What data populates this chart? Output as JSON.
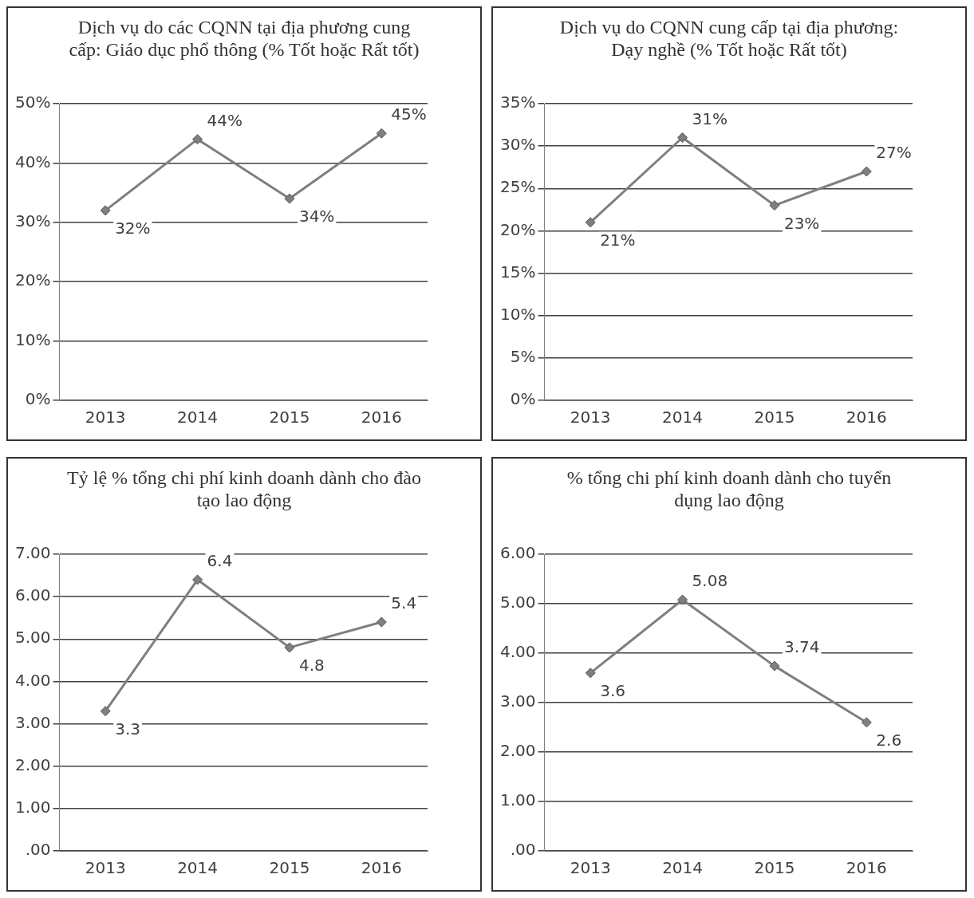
{
  "chart_data": [
    {
      "type": "line",
      "title": "Dịch vụ do các CQNN tại địa phương cung cấp: Giáo dục phổ thông (% Tốt hoặc Rất tốt)",
      "categories": [
        "2013",
        "2014",
        "2015",
        "2016"
      ],
      "values": [
        32,
        44,
        34,
        45
      ],
      "value_labels": [
        "32%",
        "44%",
        "34%",
        "45%"
      ],
      "color": "#7f7f7f",
      "marker": "diamond",
      "grid": "y",
      "ylim": [
        0,
        50
      ],
      "yticks": [
        {
          "value": 0,
          "label": "0%"
        },
        {
          "value": 10,
          "label": "10%"
        },
        {
          "value": 20,
          "label": "20%"
        },
        {
          "value": 30,
          "label": "30%"
        },
        {
          "value": 40,
          "label": "40%"
        },
        {
          "value": 50,
          "label": "50%"
        }
      ]
    },
    {
      "type": "line",
      "title": "Dịch vụ do CQNN cung cấp tại địa phương: Dạy nghề (% Tốt hoặc Rất tốt)",
      "categories": [
        "2013",
        "2014",
        "2015",
        "2016"
      ],
      "values": [
        21,
        31,
        23,
        27
      ],
      "value_labels": [
        "21%",
        "31%",
        "23%",
        "27%"
      ],
      "color": "#7f7f7f",
      "marker": "diamond",
      "grid": "y",
      "ylim": [
        0,
        35
      ],
      "yticks": [
        {
          "value": 0,
          "label": "0%"
        },
        {
          "value": 5,
          "label": "5%"
        },
        {
          "value": 10,
          "label": "10%"
        },
        {
          "value": 15,
          "label": "15%"
        },
        {
          "value": 20,
          "label": "20%"
        },
        {
          "value": 25,
          "label": "25%"
        },
        {
          "value": 30,
          "label": "30%"
        },
        {
          "value": 35,
          "label": "35%"
        }
      ]
    },
    {
      "type": "line",
      "title": "Tỷ lệ % tổng chi phí kinh doanh dành cho đào tạo lao động",
      "categories": [
        "2013",
        "2014",
        "2015",
        "2016"
      ],
      "values": [
        3.3,
        6.4,
        4.8,
        5.4
      ],
      "data_labels": true,
      "color": "#7f7f7f",
      "marker": "diamond",
      "grid": "y",
      "ylim": [
        0,
        7
      ],
      "yticks": [
        {
          "value": 0,
          "label": ".00"
        },
        {
          "value": 1,
          "label": "1.00"
        },
        {
          "value": 2,
          "label": "2.00"
        },
        {
          "value": 3,
          "label": "3.00"
        },
        {
          "value": 4,
          "label": "4.00"
        },
        {
          "value": 5,
          "label": "5.00"
        },
        {
          "value": 6,
          "label": "6.00"
        },
        {
          "value": 7,
          "label": "7.00"
        }
      ]
    },
    {
      "type": "line",
      "title": "% tổng chi phí kinh doanh dành cho tuyển dụng lao động",
      "categories": [
        "2013",
        "2014",
        "2015",
        "2016"
      ],
      "values": [
        3.6,
        5.08,
        3.74,
        2.6
      ],
      "data_labels": true,
      "color": "#7f7f7f",
      "marker": "diamond",
      "grid": "y",
      "ylim": [
        0,
        6
      ],
      "yticks": [
        {
          "value": 0,
          "label": ".00"
        },
        {
          "value": 1,
          "label": "1.00"
        },
        {
          "value": 2,
          "label": "2.00"
        },
        {
          "value": 3,
          "label": "3.00"
        },
        {
          "value": 4,
          "label": "4.00"
        },
        {
          "value": 5,
          "label": "5.00"
        },
        {
          "value": 6,
          "label": "6.00"
        }
      ]
    }
  ]
}
